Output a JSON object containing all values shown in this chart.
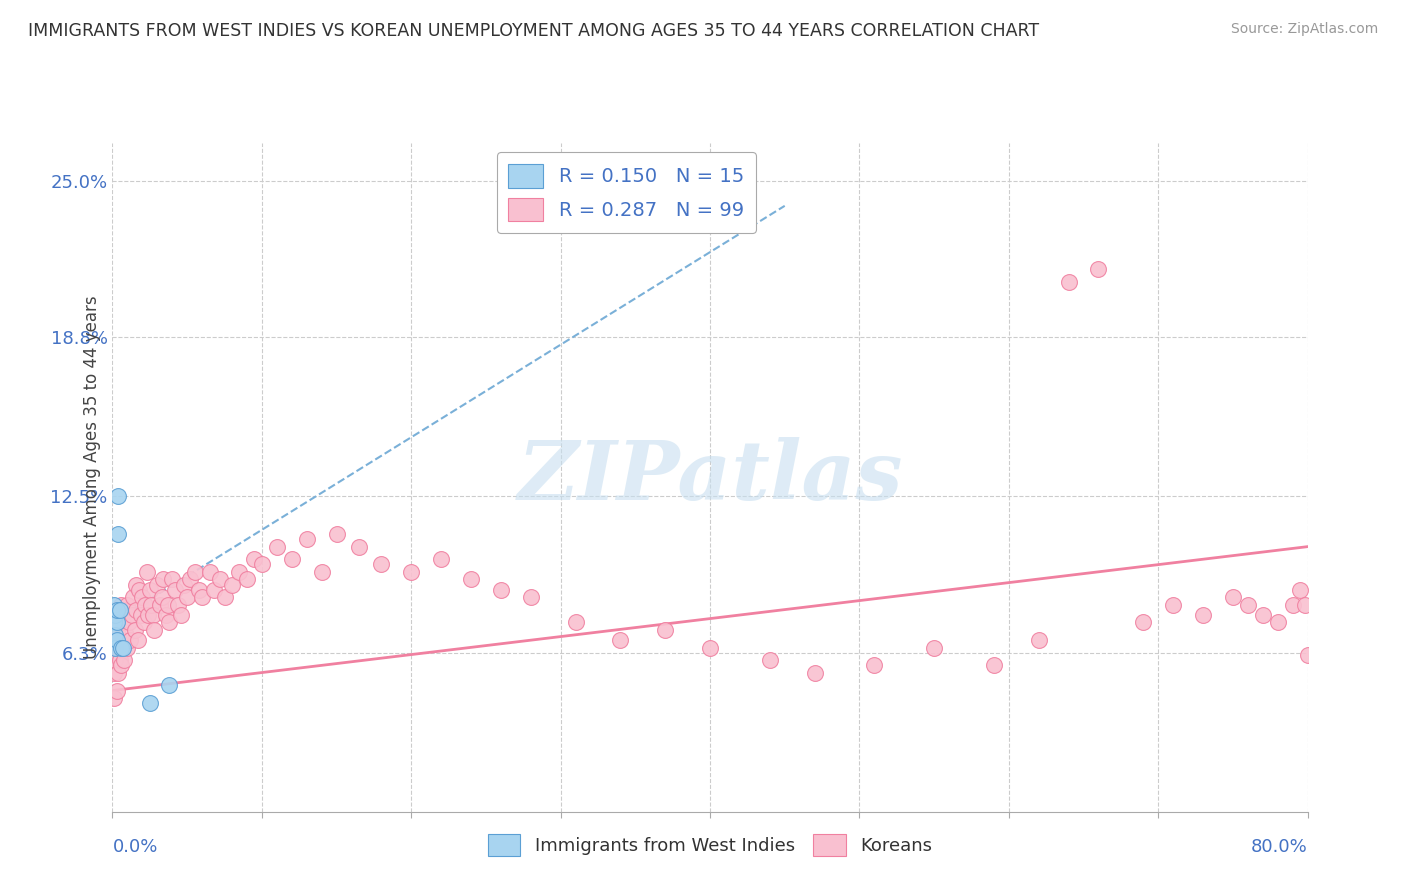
{
  "title": "IMMIGRANTS FROM WEST INDIES VS KOREAN UNEMPLOYMENT AMONG AGES 35 TO 44 YEARS CORRELATION CHART",
  "source": "Source: ZipAtlas.com",
  "ylabel": "Unemployment Among Ages 35 to 44 years",
  "ytick_positions": [
    0.063,
    0.125,
    0.188,
    0.25
  ],
  "ytick_labels": [
    "6.3%",
    "12.5%",
    "18.8%",
    "25.0%"
  ],
  "xlim": [
    0.0,
    0.8
  ],
  "ylim": [
    0.0,
    0.265
  ],
  "legend1_label": "R = 0.150   N = 15",
  "legend2_label": "R = 0.287   N = 99",
  "legend_bottom_label1": "Immigrants from West Indies",
  "legend_bottom_label2": "Koreans",
  "blue_fill": "#a8d4f0",
  "blue_edge": "#5b9fd4",
  "pink_fill": "#f9c0d0",
  "pink_edge": "#f080a0",
  "blue_line_color": "#7ab0d8",
  "pink_line_color": "#f080a0",
  "watermark_color": "#c8dff0",
  "grid_color": "#cccccc",
  "blue_x": [
    0.001,
    0.001,
    0.002,
    0.002,
    0.002,
    0.003,
    0.003,
    0.003,
    0.004,
    0.004,
    0.005,
    0.006,
    0.007,
    0.025,
    0.038
  ],
  "blue_y": [
    0.075,
    0.082,
    0.07,
    0.078,
    0.065,
    0.075,
    0.08,
    0.068,
    0.11,
    0.125,
    0.08,
    0.065,
    0.065,
    0.043,
    0.05
  ],
  "pink_x": [
    0.001,
    0.001,
    0.002,
    0.002,
    0.003,
    0.003,
    0.004,
    0.004,
    0.005,
    0.005,
    0.006,
    0.006,
    0.007,
    0.007,
    0.008,
    0.008,
    0.009,
    0.01,
    0.01,
    0.011,
    0.012,
    0.013,
    0.014,
    0.015,
    0.016,
    0.016,
    0.017,
    0.018,
    0.019,
    0.02,
    0.021,
    0.022,
    0.023,
    0.024,
    0.025,
    0.026,
    0.027,
    0.028,
    0.03,
    0.032,
    0.033,
    0.034,
    0.036,
    0.037,
    0.038,
    0.04,
    0.042,
    0.044,
    0.046,
    0.048,
    0.05,
    0.052,
    0.055,
    0.058,
    0.06,
    0.065,
    0.068,
    0.072,
    0.075,
    0.08,
    0.085,
    0.09,
    0.095,
    0.1,
    0.11,
    0.12,
    0.13,
    0.14,
    0.15,
    0.165,
    0.18,
    0.2,
    0.22,
    0.24,
    0.26,
    0.28,
    0.31,
    0.34,
    0.37,
    0.4,
    0.44,
    0.47,
    0.51,
    0.55,
    0.59,
    0.62,
    0.64,
    0.66,
    0.69,
    0.71,
    0.73,
    0.75,
    0.76,
    0.77,
    0.78,
    0.79,
    0.795,
    0.798,
    0.8
  ],
  "pink_y": [
    0.045,
    0.055,
    0.06,
    0.072,
    0.048,
    0.065,
    0.055,
    0.07,
    0.06,
    0.075,
    0.058,
    0.082,
    0.065,
    0.075,
    0.06,
    0.08,
    0.07,
    0.065,
    0.082,
    0.075,
    0.068,
    0.078,
    0.085,
    0.072,
    0.08,
    0.09,
    0.068,
    0.088,
    0.078,
    0.085,
    0.075,
    0.082,
    0.095,
    0.078,
    0.088,
    0.082,
    0.078,
    0.072,
    0.09,
    0.082,
    0.085,
    0.092,
    0.078,
    0.082,
    0.075,
    0.092,
    0.088,
    0.082,
    0.078,
    0.09,
    0.085,
    0.092,
    0.095,
    0.088,
    0.085,
    0.095,
    0.088,
    0.092,
    0.085,
    0.09,
    0.095,
    0.092,
    0.1,
    0.098,
    0.105,
    0.1,
    0.108,
    0.095,
    0.11,
    0.105,
    0.098,
    0.095,
    0.1,
    0.092,
    0.088,
    0.085,
    0.075,
    0.068,
    0.072,
    0.065,
    0.06,
    0.055,
    0.058,
    0.065,
    0.058,
    0.068,
    0.21,
    0.215,
    0.075,
    0.082,
    0.078,
    0.085,
    0.082,
    0.078,
    0.075,
    0.082,
    0.088,
    0.082,
    0.062
  ],
  "blue_trend_x0": 0.0,
  "blue_trend_x1": 0.45,
  "blue_trend_y0": 0.075,
  "blue_trend_y1": 0.24,
  "pink_trend_x0": 0.0,
  "pink_trend_x1": 0.8,
  "pink_trend_y0": 0.048,
  "pink_trend_y1": 0.105
}
